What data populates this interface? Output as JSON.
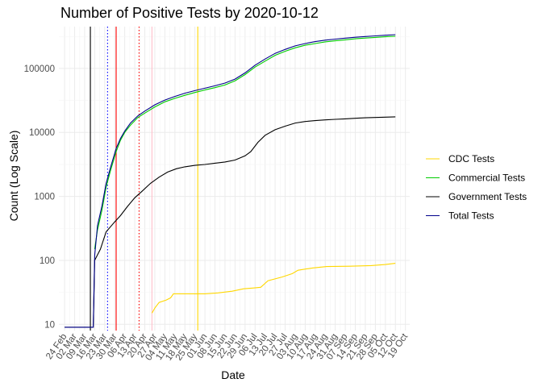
{
  "chart_data": {
    "type": "line",
    "title": "Number of Positive Tests by  2020-10-12",
    "xlabel": "Date",
    "ylabel": "Count (Log Scale)",
    "y_scale": "log10",
    "ylim": [
      8,
      450000
    ],
    "xlim": [
      "2020-02-20",
      "2020-10-22"
    ],
    "x_ticks": [
      "2020-02-24",
      "2020-03-02",
      "2020-03-09",
      "2020-03-16",
      "2020-03-23",
      "2020-03-30",
      "2020-04-06",
      "2020-04-13",
      "2020-04-20",
      "2020-04-27",
      "2020-05-04",
      "2020-05-11",
      "2020-05-18",
      "2020-05-25",
      "2020-06-01",
      "2020-06-08",
      "2020-06-15",
      "2020-06-22",
      "2020-06-29",
      "2020-07-06",
      "2020-07-13",
      "2020-07-20",
      "2020-07-27",
      "2020-08-03",
      "2020-08-10",
      "2020-08-17",
      "2020-08-24",
      "2020-08-31",
      "2020-09-07",
      "2020-09-14",
      "2020-09-21",
      "2020-09-28",
      "2020-10-05",
      "2020-10-12",
      "2020-10-19"
    ],
    "x_tick_labels": [
      "24 Feb",
      "02 Mar",
      "09 Mar",
      "16 Mar",
      "23 Mar",
      "30 Mar",
      "06 Apr",
      "13 Apr",
      "20 Apr",
      "27 Apr",
      "04 May",
      "11 May",
      "18 May",
      "25 May",
      "01 Jun",
      "08 Jun",
      "15 Jun",
      "22 Jun",
      "29 Jun",
      "06 Jul",
      "13 Jul",
      "20 Jul",
      "27 Jul",
      "03 Aug",
      "10 Aug",
      "17 Aug",
      "24 Aug",
      "31 Aug",
      "07 Sep",
      "14 Sep",
      "21 Sep",
      "28 Sep",
      "05 Oct",
      "12 Oct",
      "19 Oct"
    ],
    "y_ticks": [
      10,
      100,
      1000,
      10000,
      100000
    ],
    "y_tick_labels": [
      "10",
      "100",
      "1000",
      "10000",
      "100000"
    ],
    "grid": true,
    "legend_position": "right",
    "vlines": [
      {
        "date": "2020-03-13",
        "color": "#000000",
        "style": "solid"
      },
      {
        "date": "2020-03-25",
        "color": "#0000ff",
        "style": "dotted"
      },
      {
        "date": "2020-03-31",
        "color": "#ff0000",
        "style": "solid"
      },
      {
        "date": "2020-04-16",
        "color": "#ff0000",
        "style": "dotted"
      },
      {
        "date": "2020-04-25",
        "color": "#ffc0cb",
        "style": "solid"
      },
      {
        "date": "2020-05-27",
        "color": "#ffd700",
        "style": "solid"
      }
    ],
    "series": [
      {
        "name": "CDC Tests",
        "color": "#ffd700",
        "points": [
          [
            "2020-04-25",
            15
          ],
          [
            "2020-04-27",
            18
          ],
          [
            "2020-04-30",
            22
          ],
          [
            "2020-05-05",
            24
          ],
          [
            "2020-05-08",
            26
          ],
          [
            "2020-05-10",
            30
          ],
          [
            "2020-05-20",
            30
          ],
          [
            "2020-06-01",
            30
          ],
          [
            "2020-06-10",
            31
          ],
          [
            "2020-06-20",
            33
          ],
          [
            "2020-06-28",
            36
          ],
          [
            "2020-07-05",
            37
          ],
          [
            "2020-07-10",
            38
          ],
          [
            "2020-07-15",
            48
          ],
          [
            "2020-07-25",
            55
          ],
          [
            "2020-08-01",
            62
          ],
          [
            "2020-08-05",
            70
          ],
          [
            "2020-08-15",
            76
          ],
          [
            "2020-08-25",
            80
          ],
          [
            "2020-09-10",
            81
          ],
          [
            "2020-09-25",
            83
          ],
          [
            "2020-10-05",
            86
          ],
          [
            "2020-10-12",
            90
          ]
        ]
      },
      {
        "name": "Commercial Tests",
        "color": "#00cc00",
        "points": [
          [
            "2020-03-16",
            150
          ],
          [
            "2020-03-18",
            300
          ],
          [
            "2020-03-21",
            600
          ],
          [
            "2020-03-24",
            1400
          ],
          [
            "2020-03-27",
            2500
          ],
          [
            "2020-03-31",
            5000
          ],
          [
            "2020-04-03",
            7500
          ],
          [
            "2020-04-06",
            10000
          ],
          [
            "2020-04-10",
            13000
          ],
          [
            "2020-04-15",
            17000
          ],
          [
            "2020-04-20",
            20000
          ],
          [
            "2020-04-27",
            25000
          ],
          [
            "2020-05-04",
            30000
          ],
          [
            "2020-05-11",
            34000
          ],
          [
            "2020-05-18",
            38000
          ],
          [
            "2020-05-25",
            42000
          ],
          [
            "2020-06-01",
            46000
          ],
          [
            "2020-06-08",
            50000
          ],
          [
            "2020-06-15",
            55000
          ],
          [
            "2020-06-22",
            64000
          ],
          [
            "2020-06-29",
            80000
          ],
          [
            "2020-07-06",
            105000
          ],
          [
            "2020-07-13",
            130000
          ],
          [
            "2020-07-20",
            160000
          ],
          [
            "2020-07-27",
            185000
          ],
          [
            "2020-08-03",
            210000
          ],
          [
            "2020-08-10",
            230000
          ],
          [
            "2020-08-17",
            245000
          ],
          [
            "2020-08-24",
            260000
          ],
          [
            "2020-08-31",
            270000
          ],
          [
            "2020-09-07",
            280000
          ],
          [
            "2020-09-14",
            290000
          ],
          [
            "2020-09-21",
            298000
          ],
          [
            "2020-09-28",
            305000
          ],
          [
            "2020-10-05",
            312000
          ],
          [
            "2020-10-12",
            318000
          ]
        ]
      },
      {
        "name": "Government Tests",
        "color": "#000000",
        "points": [
          [
            "2020-02-24",
            9
          ],
          [
            "2020-03-15",
            9
          ],
          [
            "2020-03-16",
            100
          ],
          [
            "2020-03-20",
            150
          ],
          [
            "2020-03-24",
            280
          ],
          [
            "2020-03-30",
            400
          ],
          [
            "2020-04-03",
            500
          ],
          [
            "2020-04-08",
            700
          ],
          [
            "2020-04-13",
            950
          ],
          [
            "2020-04-18",
            1200
          ],
          [
            "2020-04-24",
            1600
          ],
          [
            "2020-04-30",
            2000
          ],
          [
            "2020-05-06",
            2400
          ],
          [
            "2020-05-12",
            2700
          ],
          [
            "2020-05-18",
            2900
          ],
          [
            "2020-05-25",
            3050
          ],
          [
            "2020-06-01",
            3150
          ],
          [
            "2020-06-08",
            3300
          ],
          [
            "2020-06-15",
            3450
          ],
          [
            "2020-06-22",
            3700
          ],
          [
            "2020-06-29",
            4300
          ],
          [
            "2020-07-03",
            5000
          ],
          [
            "2020-07-08",
            7000
          ],
          [
            "2020-07-13",
            9000
          ],
          [
            "2020-07-20",
            11000
          ],
          [
            "2020-07-27",
            12500
          ],
          [
            "2020-08-03",
            14000
          ],
          [
            "2020-08-10",
            14800
          ],
          [
            "2020-08-17",
            15300
          ],
          [
            "2020-08-24",
            15700
          ],
          [
            "2020-08-31",
            16000
          ],
          [
            "2020-09-07",
            16300
          ],
          [
            "2020-09-14",
            16600
          ],
          [
            "2020-09-21",
            16900
          ],
          [
            "2020-09-28",
            17100
          ],
          [
            "2020-10-05",
            17300
          ],
          [
            "2020-10-12",
            17500
          ]
        ]
      },
      {
        "name": "Total Tests",
        "color": "#00008b",
        "points": [
          [
            "2020-02-24",
            9
          ],
          [
            "2020-03-15",
            9
          ],
          [
            "2020-03-16",
            120
          ],
          [
            "2020-03-18",
            350
          ],
          [
            "2020-03-21",
            700
          ],
          [
            "2020-03-24",
            1600
          ],
          [
            "2020-03-27",
            2800
          ],
          [
            "2020-03-31",
            5600
          ],
          [
            "2020-04-03",
            8000
          ],
          [
            "2020-04-06",
            10500
          ],
          [
            "2020-04-10",
            14000
          ],
          [
            "2020-04-15",
            18000
          ],
          [
            "2020-04-20",
            21500
          ],
          [
            "2020-04-27",
            27000
          ],
          [
            "2020-05-04",
            32000
          ],
          [
            "2020-05-11",
            36500
          ],
          [
            "2020-05-18",
            41000
          ],
          [
            "2020-05-25",
            45000
          ],
          [
            "2020-06-01",
            49000
          ],
          [
            "2020-06-08",
            53500
          ],
          [
            "2020-06-15",
            59000
          ],
          [
            "2020-06-22",
            68000
          ],
          [
            "2020-06-29",
            85000
          ],
          [
            "2020-07-06",
            112000
          ],
          [
            "2020-07-13",
            140000
          ],
          [
            "2020-07-20",
            172000
          ],
          [
            "2020-07-27",
            198000
          ],
          [
            "2020-08-03",
            225000
          ],
          [
            "2020-08-10",
            245000
          ],
          [
            "2020-08-17",
            262000
          ],
          [
            "2020-08-24",
            276000
          ],
          [
            "2020-08-31",
            287000
          ],
          [
            "2020-09-07",
            297000
          ],
          [
            "2020-09-14",
            307000
          ],
          [
            "2020-09-21",
            315000
          ],
          [
            "2020-09-28",
            322000
          ],
          [
            "2020-10-05",
            330000
          ],
          [
            "2020-10-12",
            337000
          ]
        ]
      }
    ],
    "legend": [
      "CDC Tests",
      "Commercial Tests",
      "Government Tests",
      "Total Tests"
    ]
  }
}
